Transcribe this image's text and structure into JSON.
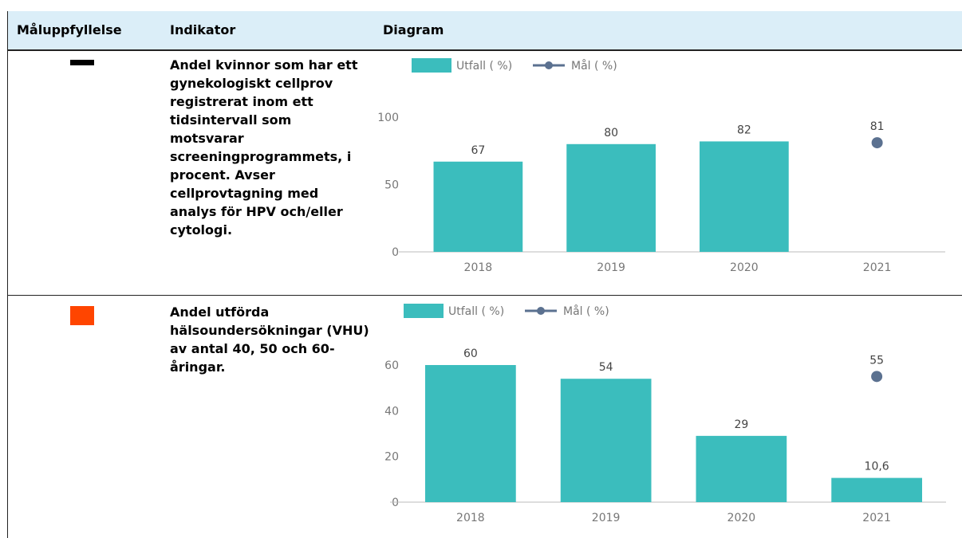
{
  "table": {
    "headers": [
      "Måluppfyllelse",
      "Indikator",
      "Diagram"
    ],
    "rows": [
      {
        "indicator": "Andel kvinnor som har ett gynekologiskt cellprov registrerat inom ett tidsintervall som motsvarar screeningprogrammets, i procent. Avser cellprovtagning med analys för HPV och/eller cytologi.",
        "chart": {
          "type": "bar",
          "categories": [
            "2018",
            "2019",
            "2020",
            "2021"
          ],
          "series": [
            {
              "name": "Utfall ( %)",
              "color": "#3bbdbd",
              "values": [
                67,
                80,
                82,
                null
              ]
            },
            {
              "name": "Mål ( %)",
              "type": "point",
              "color": "#5b7190",
              "values": [
                null,
                null,
                null,
                81
              ]
            }
          ],
          "ylim": [
            0,
            100
          ],
          "yticks": [
            0,
            50,
            100
          ]
        }
      },
      {
        "indicator": "Andel utförda hälsoundersökningar (VHU) av antal 40, 50 och 60-åringar.",
        "chart": {
          "type": "bar",
          "categories": [
            "2018",
            "2019",
            "2020",
            "2021"
          ],
          "series": [
            {
              "name": "Utfall ( %)",
              "color": "#3bbdbd",
              "values": [
                60,
                54,
                29,
                10.6
              ],
              "value_labels": [
                "60",
                "54",
                "29",
                "10,6"
              ]
            },
            {
              "name": "Mål ( %)",
              "type": "point",
              "color": "#5b7190",
              "values": [
                null,
                null,
                null,
                55
              ]
            }
          ],
          "ylim": [
            0,
            60
          ],
          "yticks": [
            0,
            20,
            40,
            60
          ]
        }
      }
    ]
  }
}
